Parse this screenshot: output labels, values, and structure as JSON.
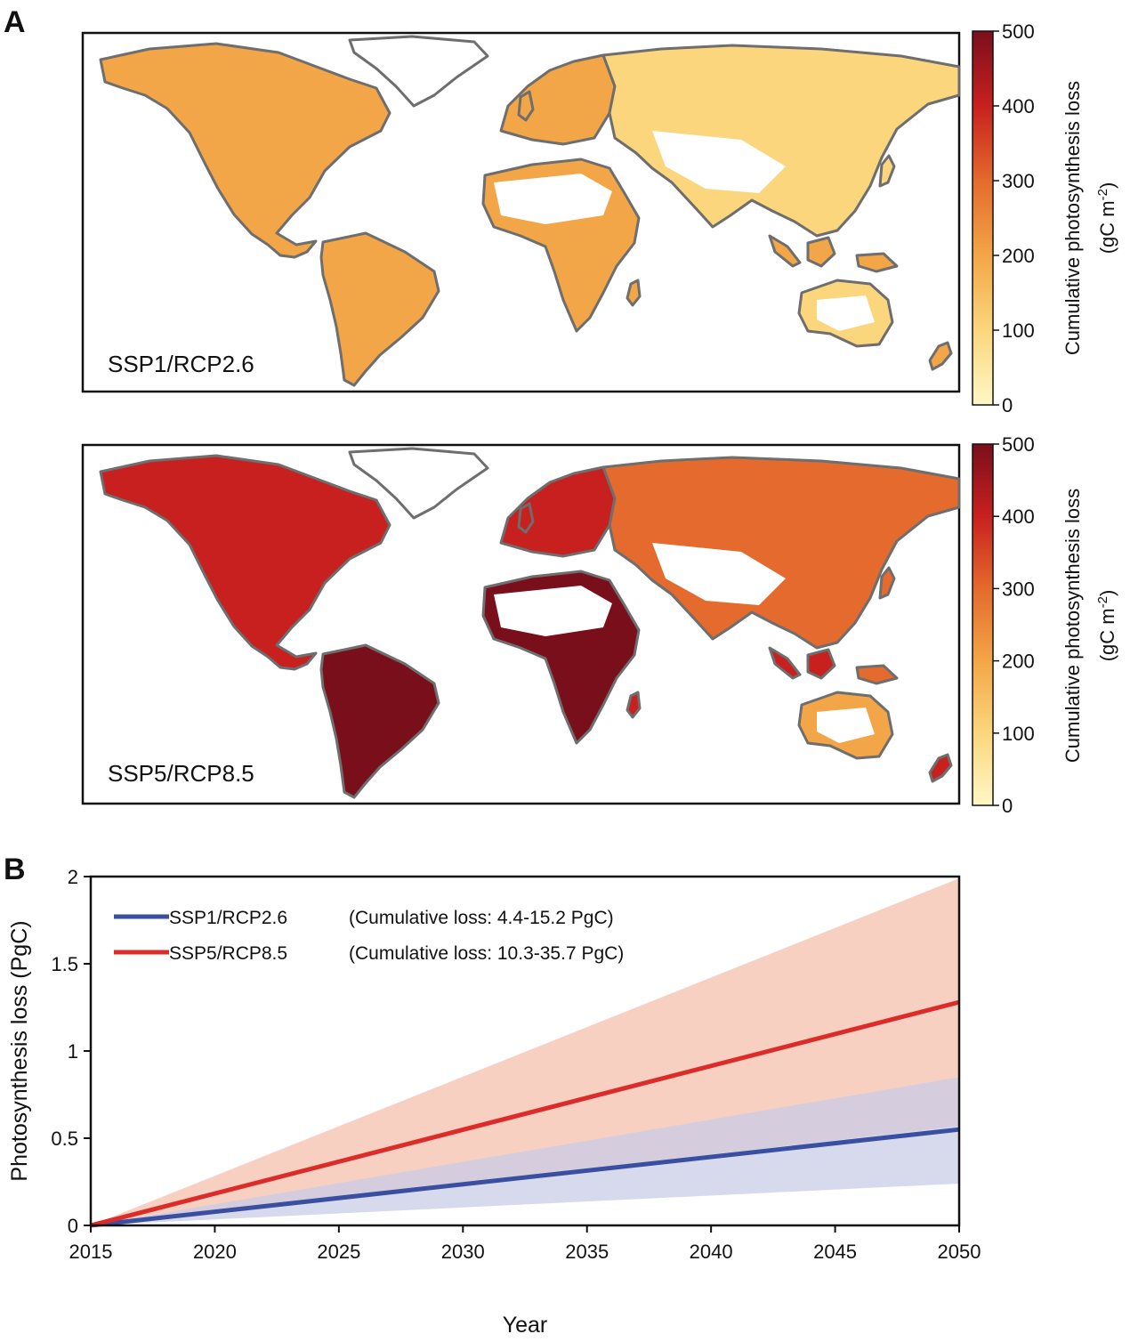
{
  "panel_a": {
    "letter": "A",
    "colorbar": {
      "ticks": [
        "0",
        "100",
        "200",
        "300",
        "400",
        "500"
      ],
      "title_line1": "Cumulative photosynthesis loss",
      "title_line2": "(gC m",
      "title_sup": "-2",
      "title_close": ")",
      "min": 0,
      "max": 500,
      "colors": [
        "#fff7c6",
        "#fbd67d",
        "#f3a647",
        "#e46a2d",
        "#c8201f",
        "#7a0f1c"
      ]
    },
    "maps": [
      {
        "scenario": "SSP1/RCP2.6"
      },
      {
        "scenario": "SSP5/RCP8.5"
      }
    ]
  },
  "panel_b": {
    "letter": "B"
  },
  "chart_data": {
    "type": "line",
    "xlabel": "Year",
    "ylabel": "Photosynthesis loss (PgC)",
    "xlim": [
      2015,
      2050
    ],
    "ylim": [
      0,
      2
    ],
    "xticks": [
      "2015",
      "2020",
      "2025",
      "2030",
      "2035",
      "2040",
      "2045",
      "2050"
    ],
    "yticks": [
      "0",
      "0.5",
      "1",
      "1.5",
      "2"
    ],
    "series": [
      {
        "name": "SSP1/RCP2.6",
        "annotation": "(Cumulative loss: 4.4-15.2 PgC)",
        "color": "#3a4fa0",
        "band_color": "#c9cce6",
        "x": [
          2015,
          2050
        ],
        "y": [
          0,
          0.55
        ],
        "lower": [
          0,
          0.24
        ],
        "upper": [
          0,
          0.85
        ]
      },
      {
        "name": "SSP5/RCP8.5",
        "annotation": "(Cumulative loss: 10.3-35.7 PgC)",
        "color": "#dc2c2a",
        "band_color": "#f5c4b2",
        "x": [
          2015,
          2050
        ],
        "y": [
          0,
          1.28
        ],
        "lower": [
          0,
          0.57
        ],
        "upper": [
          0,
          1.99
        ]
      }
    ],
    "legend_position": "top-left"
  }
}
